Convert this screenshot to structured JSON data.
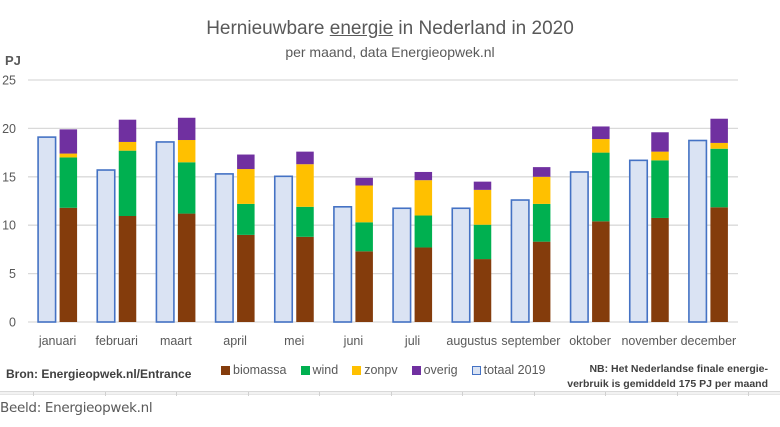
{
  "chart_data": {
    "type": "bar",
    "title_parts": [
      "Hernieuwbare ",
      "energie",
      " in Nederland in 2020"
    ],
    "title": "Hernieuwbare energie in Nederland in 2020",
    "subtitle": "per maand, data Energieopwek.nl",
    "ylabel": "PJ",
    "xlabel": "",
    "ylim": [
      0,
      25
    ],
    "yticks": [
      0,
      5,
      10,
      15,
      20,
      25
    ],
    "grid": true,
    "legend_position": "bottom",
    "categories": [
      "januari",
      "februari",
      "maart",
      "april",
      "mei",
      "juni",
      "juli",
      "augustus",
      "september",
      "oktober",
      "november",
      "december"
    ],
    "series": [
      {
        "name": "biomassa",
        "stack": "2020",
        "color": "#843c0c",
        "values": [
          11.8,
          10.95,
          11.2,
          9.0,
          8.8,
          7.3,
          7.7,
          6.5,
          8.3,
          10.4,
          10.75,
          11.85
        ]
      },
      {
        "name": "wind",
        "stack": "2020",
        "color": "#00b050",
        "values": [
          5.2,
          6.75,
          5.3,
          3.2,
          3.1,
          3.0,
          3.3,
          3.55,
          3.9,
          7.1,
          5.95,
          6.05
        ]
      },
      {
        "name": "zonpv",
        "stack": "2020",
        "color": "#ffc000",
        "values": [
          0.4,
          0.9,
          2.3,
          3.6,
          4.4,
          3.8,
          3.65,
          3.6,
          2.8,
          1.4,
          0.9,
          0.6
        ]
      },
      {
        "name": "overig",
        "stack": "2020",
        "color": "#7030a0",
        "values": [
          2.5,
          2.3,
          2.3,
          1.5,
          1.3,
          0.8,
          0.85,
          0.85,
          1.0,
          1.3,
          2.0,
          2.5
        ]
      },
      {
        "name": "totaal 2019",
        "stack": "2019",
        "color": "#dae3f3",
        "edge_color": "#4472c4",
        "values": [
          19.1,
          15.7,
          18.6,
          15.3,
          15.05,
          11.9,
          11.75,
          11.75,
          12.6,
          15.5,
          16.7,
          18.75
        ]
      }
    ],
    "legend": [
      "biomassa",
      "wind",
      "zonpv",
      "overig",
      "totaal 2019"
    ],
    "annotations": {
      "source": "Bron: Energieopwek.nl/Entrance",
      "note_line1": "NB: Het Nederlandse finale energie-",
      "note_line2": "verbruik is gemiddeld 175 PJ per maand"
    }
  },
  "caption": "Beeld: Energieopwek.nl"
}
